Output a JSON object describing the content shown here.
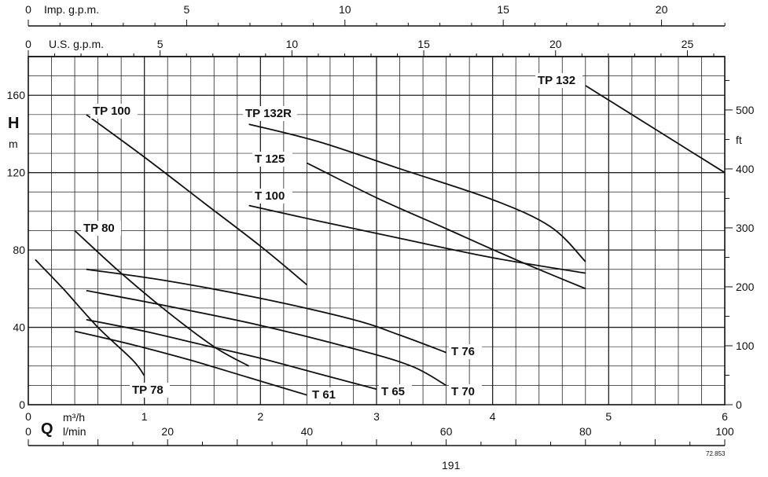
{
  "chart_data": {
    "type": "line",
    "x_primary": {
      "name": "Q",
      "unit": "m³/h",
      "ticks": [
        0,
        1,
        2,
        3,
        4,
        5,
        6
      ],
      "xlim": [
        0,
        6
      ]
    },
    "x_lmin": {
      "unit": "l/min",
      "ticks": [
        0,
        20,
        40,
        60,
        80,
        100
      ]
    },
    "x_usgpm": {
      "unit": "U.S. g.p.m.",
      "ticks": [
        0,
        5,
        10,
        15,
        20,
        25
      ]
    },
    "x_impgpm": {
      "unit": "Imp. g.p.m.",
      "ticks": [
        0,
        5,
        10,
        15,
        20
      ]
    },
    "y_primary": {
      "name": "H",
      "unit": "m",
      "ticks": [
        0,
        40,
        80,
        120,
        160
      ],
      "ylim": [
        0,
        180
      ]
    },
    "y_secondary": {
      "unit": "ft",
      "ticks": [
        0,
        100,
        200,
        300,
        400,
        500
      ]
    },
    "grid": true,
    "series": [
      {
        "name": "TP 78",
        "x": [
          0.06,
          0.3,
          0.6,
          0.9,
          1.0
        ],
        "y": [
          75,
          60,
          40,
          23,
          15
        ]
      },
      {
        "name": "TP 80",
        "x": [
          0.4,
          0.8,
          1.2,
          1.6,
          1.9
        ],
        "y": [
          90,
          68,
          48,
          30,
          20
        ]
      },
      {
        "name": "TP 100",
        "x": [
          0.5,
          1.0,
          1.5,
          2.0,
          2.4
        ],
        "y": [
          150,
          128,
          105,
          82,
          62
        ]
      },
      {
        "name": "TP 132R",
        "x": [
          1.9,
          2.5,
          3.2,
          4.0,
          4.5,
          4.8
        ],
        "y": [
          145,
          136,
          122,
          106,
          92,
          74
        ]
      },
      {
        "name": "TP 132",
        "x": [
          4.8,
          5.2,
          5.6,
          6.0
        ],
        "y": [
          165,
          150,
          135,
          120
        ]
      },
      {
        "name": "T 125",
        "x": [
          2.4,
          3.0,
          3.6,
          4.2,
          4.8
        ],
        "y": [
          125,
          107,
          91,
          75,
          60
        ]
      },
      {
        "name": "T 100",
        "x": [
          1.9,
          2.5,
          3.2,
          4.0,
          4.8
        ],
        "y": [
          103,
          95,
          86,
          76,
          68
        ]
      },
      {
        "name": "T 76",
        "x": [
          0.5,
          1.2,
          2.0,
          2.8,
          3.2,
          3.6
        ],
        "y": [
          70,
          64,
          55,
          44,
          36,
          27
        ]
      },
      {
        "name": "T 70",
        "x": [
          0.5,
          1.2,
          2.0,
          2.8,
          3.3,
          3.6
        ],
        "y": [
          59,
          51,
          41,
          29,
          20,
          10
        ]
      },
      {
        "name": "T 65",
        "x": [
          0.5,
          1.0,
          1.5,
          2.0,
          2.5,
          3.0
        ],
        "y": [
          44,
          38,
          31,
          24,
          16,
          8
        ]
      },
      {
        "name": "T 61",
        "x": [
          0.4,
          0.9,
          1.4,
          1.9,
          2.4
        ],
        "y": [
          38,
          31,
          23,
          14,
          5
        ]
      }
    ]
  },
  "labels": {
    "h_axis": "H",
    "h_unit": "m",
    "ft_unit": "ft",
    "q_axis": "Q",
    "q_unit": "m³/h",
    "lmin_unit": "l/min",
    "usgpm_unit": "U.S. g.p.m.",
    "impgpm_unit": "Imp. g.p.m.",
    "page_number": "191",
    "figure_code": "72.853"
  }
}
